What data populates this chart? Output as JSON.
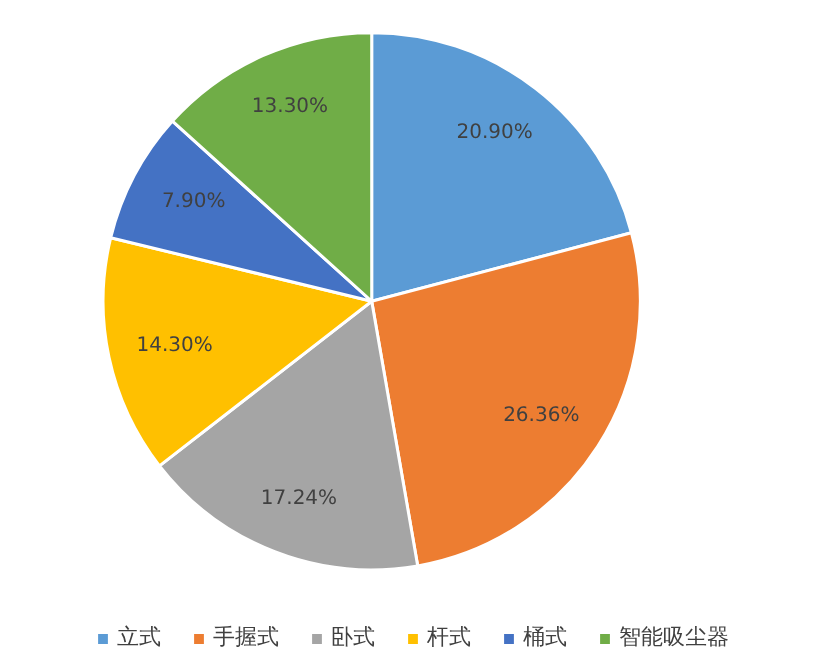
{
  "chart_data": {
    "type": "pie",
    "categories": [
      "立式",
      "手握式",
      "卧式",
      "杆式",
      "桶式",
      "智能吸尘器"
    ],
    "values": [
      20.9,
      26.36,
      17.24,
      14.3,
      7.9,
      13.3
    ],
    "colors": [
      "#5b9bd5",
      "#ed7d31",
      "#a5a5a5",
      "#ffc000",
      "#4472c4",
      "#70ad47"
    ],
    "value_labels": [
      "20.90%",
      "26.36%",
      "17.24%",
      "14.30%",
      "7.90%",
      "13.30%"
    ],
    "legend": "bottom"
  }
}
